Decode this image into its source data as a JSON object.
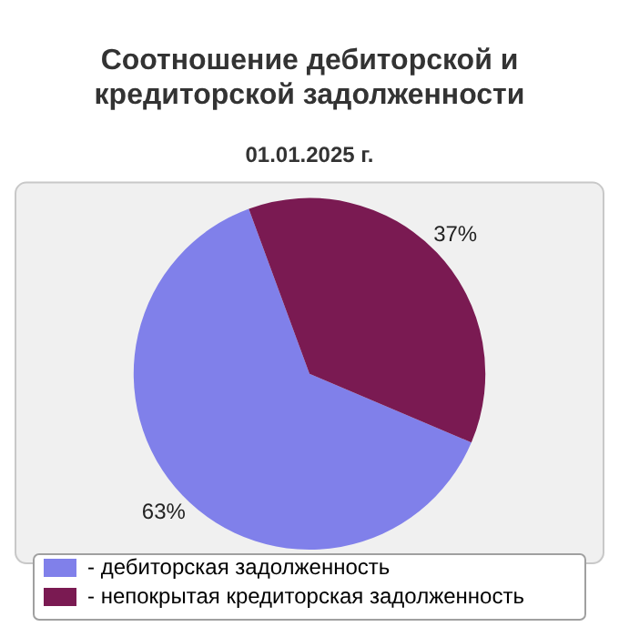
{
  "chart_data": {
    "type": "pie",
    "title": "Соотношение дебиторской и кредиторской задолженности",
    "subtitle": "01.01.2025 г.",
    "categories": [
      "- дебиторская задолженность",
      "- непокрытая кредиторская задолженность"
    ],
    "values": [
      63,
      37
    ],
    "colors": [
      "#8080ea",
      "#7a1a52"
    ],
    "value_labels": [
      "63%",
      "37%"
    ],
    "legend": "bottom"
  }
}
